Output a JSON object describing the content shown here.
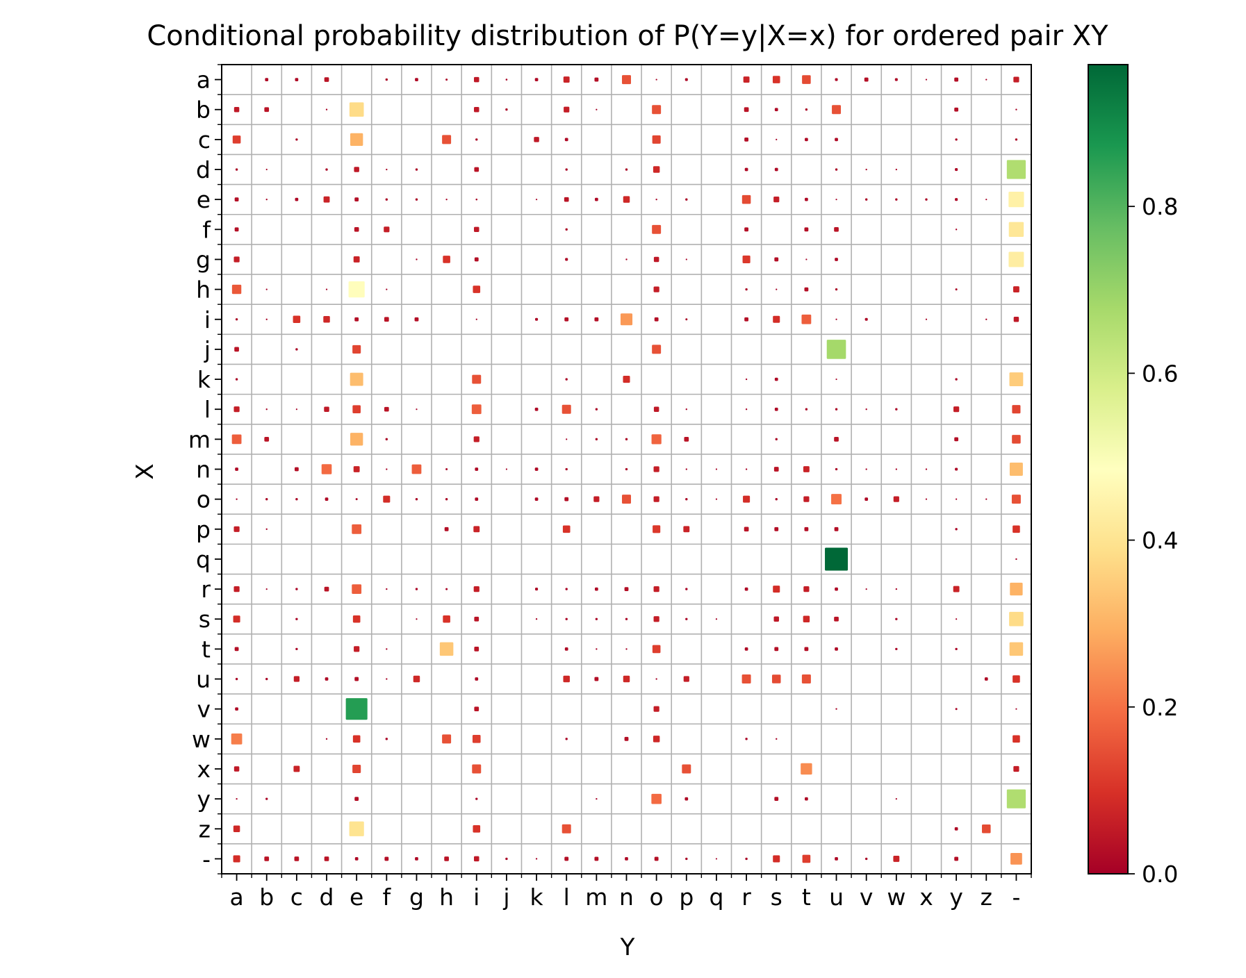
{
  "chart_data": {
    "type": "heatmap",
    "title": "Conditional probability distribution of P(Y=y|X=x) for ordered pair XY",
    "xlabel": "Y",
    "ylabel": "X",
    "x_categories": [
      "a",
      "b",
      "c",
      "d",
      "e",
      "f",
      "g",
      "h",
      "i",
      "j",
      "k",
      "l",
      "m",
      "n",
      "o",
      "p",
      "q",
      "r",
      "s",
      "t",
      "u",
      "v",
      "w",
      "x",
      "y",
      "z",
      "-"
    ],
    "y_categories": [
      "a",
      "b",
      "c",
      "d",
      "e",
      "f",
      "g",
      "h",
      "i",
      "j",
      "k",
      "l",
      "m",
      "n",
      "o",
      "p",
      "q",
      "r",
      "s",
      "t",
      "u",
      "v",
      "w",
      "x",
      "y",
      "z",
      "-"
    ],
    "grid": true,
    "marker": "square sized and colored by probability",
    "colormap": "RdYlGn",
    "colormap_stops": [
      "#a50026",
      "#d73027",
      "#f46d43",
      "#fdae61",
      "#fee08b",
      "#ffffbf",
      "#d9ef8b",
      "#a6d96a",
      "#66bd63",
      "#1a9850",
      "#006837"
    ],
    "vmin": 0.0,
    "vmax": 0.97,
    "colorbar": {
      "ticks": [
        0.0,
        0.2,
        0.4,
        0.6,
        0.8
      ],
      "tick_labels": [
        "0.0",
        "0.2",
        "0.4",
        "0.6",
        "0.8"
      ],
      "position": "right"
    },
    "values": {
      "a": {
        "b": 0.02,
        "c": 0.02,
        "d": 0.04,
        "f": 0.01,
        "g": 0.02,
        "h": 0.008,
        "i": 0.05,
        "j": 0.006,
        "k": 0.02,
        "l": 0.07,
        "m": 0.03,
        "n": 0.15,
        "o": 0.003,
        "p": 0.015,
        "r": 0.07,
        "s": 0.1,
        "t": 0.14,
        "u": 0.015,
        "v": 0.03,
        "w": 0.015,
        "x": 0.002,
        "y": 0.03,
        "z": 0.002,
        "-": 0.06
      },
      "b": {
        "a": 0.05,
        "b": 0.04,
        "d": 0.005,
        "e": 0.38,
        "i": 0.05,
        "j": 0.01,
        "l": 0.06,
        "m": 0.002,
        "o": 0.15,
        "r": 0.04,
        "s": 0.02,
        "t": 0.01,
        "u": 0.15,
        "y": 0.03,
        "-": 0.005
      },
      "c": {
        "a": 0.12,
        "c": 0.01,
        "e": 0.3,
        "h": 0.15,
        "i": 0.01,
        "k": 0.05,
        "l": 0.02,
        "o": 0.13,
        "r": 0.03,
        "s": 0.003,
        "t": 0.02,
        "u": 0.02,
        "y": 0.01,
        "-": 0.01
      },
      "d": {
        "a": 0.01,
        "b": 0.001,
        "d": 0.01,
        "e": 0.05,
        "f": 0.005,
        "g": 0.01,
        "i": 0.04,
        "l": 0.01,
        "n": 0.01,
        "o": 0.08,
        "r": 0.02,
        "s": 0.02,
        "u": 0.01,
        "v": 0.005,
        "w": 0.005,
        "y": 0.015,
        "-": 0.66
      },
      "e": {
        "a": 0.03,
        "b": 0.005,
        "c": 0.02,
        "d": 0.07,
        "e": 0.03,
        "f": 0.01,
        "g": 0.01,
        "h": 0.005,
        "i": 0.006,
        "k": 0.004,
        "l": 0.04,
        "m": 0.02,
        "n": 0.08,
        "o": 0.005,
        "p": 0.01,
        "r": 0.14,
        "s": 0.06,
        "t": 0.02,
        "u": 0.001,
        "v": 0.01,
        "w": 0.01,
        "x": 0.01,
        "y": 0.015,
        "z": 0.003,
        "-": 0.44
      },
      "f": {
        "a": 0.03,
        "e": 0.04,
        "f": 0.06,
        "i": 0.05,
        "l": 0.01,
        "o": 0.15,
        "r": 0.03,
        "t": 0.03,
        "u": 0.04,
        "y": 0.005,
        "-": 0.41
      },
      "g": {
        "a": 0.06,
        "e": 0.07,
        "g": 0.005,
        "h": 0.1,
        "i": 0.03,
        "l": 0.015,
        "n": 0.005,
        "o": 0.05,
        "p": 0.001,
        "r": 0.11,
        "s": 0.03,
        "t": 0.001,
        "u": 0.02,
        "-": 0.43
      },
      "h": {
        "a": 0.16,
        "b": 0.001,
        "d": 0.001,
        "e": 0.48,
        "f": 0.001,
        "i": 0.1,
        "o": 0.06,
        "r": 0.01,
        "s": 0.002,
        "t": 0.03,
        "u": 0.01,
        "y": 0.008,
        "-": 0.07
      },
      "i": {
        "a": 0.01,
        "b": 0.005,
        "c": 0.1,
        "d": 0.08,
        "e": 0.03,
        "f": 0.04,
        "g": 0.03,
        "i": 0.002,
        "k": 0.015,
        "l": 0.03,
        "m": 0.03,
        "n": 0.26,
        "o": 0.03,
        "p": 0.008,
        "r": 0.03,
        "s": 0.09,
        "t": 0.17,
        "u": 0.001,
        "v": 0.015,
        "x": 0.003,
        "z": 0.005,
        "-": 0.05
      },
      "j": {
        "a": 0.04,
        "c": 0.01,
        "e": 0.13,
        "o": 0.15,
        "u": 0.68
      },
      "k": {
        "a": 0.01,
        "e": 0.32,
        "i": 0.15,
        "l": 0.01,
        "n": 0.09,
        "r": 0.005,
        "s": 0.02,
        "u": 0.004,
        "y": 0.01,
        "-": 0.35
      },
      "l": {
        "a": 0.06,
        "b": 0.005,
        "c": 0.001,
        "d": 0.05,
        "e": 0.12,
        "f": 0.04,
        "g": 0.001,
        "i": 0.17,
        "k": 0.02,
        "l": 0.15,
        "m": 0.01,
        "o": 0.05,
        "p": 0.005,
        "r": 0.005,
        "s": 0.02,
        "t": 0.01,
        "u": 0.01,
        "v": 0.005,
        "w": 0.01,
        "y": 0.06,
        "-": 0.13
      },
      "m": {
        "a": 0.17,
        "b": 0.04,
        "e": 0.3,
        "f": 0.01,
        "i": 0.06,
        "l": 0.001,
        "m": 0.01,
        "n": 0.01,
        "o": 0.18,
        "p": 0.04,
        "s": 0.01,
        "u": 0.04,
        "y": 0.03,
        "-": 0.14
      },
      "n": {
        "a": 0.02,
        "c": 0.03,
        "d": 0.19,
        "e": 0.07,
        "f": 0.005,
        "g": 0.17,
        "h": 0.008,
        "i": 0.02,
        "j": 0.001,
        "k": 0.02,
        "l": 0.01,
        "n": 0.01,
        "o": 0.06,
        "p": 0.005,
        "q": 0.004,
        "r": 0.005,
        "s": 0.04,
        "t": 0.07,
        "u": 0.01,
        "v": 0.005,
        "w": 0.005,
        "x": 0.005,
        "y": 0.015,
        "-": 0.32
      },
      "o": {
        "a": 0.005,
        "b": 0.01,
        "c": 0.01,
        "d": 0.02,
        "e": 0.008,
        "f": 0.09,
        "g": 0.01,
        "h": 0.01,
        "i": 0.02,
        "k": 0.02,
        "l": 0.03,
        "m": 0.06,
        "n": 0.15,
        "o": 0.06,
        "p": 0.01,
        "q": 0.004,
        "r": 0.09,
        "s": 0.01,
        "t": 0.06,
        "u": 0.2,
        "v": 0.02,
        "w": 0.06,
        "x": 0.003,
        "y": 0.003,
        "z": 0.001,
        "-": 0.15
      },
      "p": {
        "a": 0.06,
        "b": 0.005,
        "e": 0.17,
        "h": 0.03,
        "i": 0.07,
        "l": 0.1,
        "o": 0.11,
        "p": 0.07,
        "r": 0.04,
        "s": 0.03,
        "t": 0.03,
        "u": 0.03,
        "y": 0.01,
        "-": 0.1
      },
      "q": {
        "u": 0.97,
        "-": 0.005
      },
      "r": {
        "a": 0.06,
        "b": 0.003,
        "c": 0.01,
        "d": 0.04,
        "e": 0.17,
        "f": 0.005,
        "g": 0.01,
        "h": 0.008,
        "i": 0.06,
        "k": 0.015,
        "l": 0.01,
        "m": 0.02,
        "n": 0.03,
        "o": 0.06,
        "p": 0.01,
        "r": 0.02,
        "s": 0.09,
        "t": 0.06,
        "u": 0.02,
        "v": 0.003,
        "w": 0.005,
        "y": 0.07,
        "-": 0.3
      },
      "s": {
        "a": 0.09,
        "c": 0.01,
        "e": 0.1,
        "g": 0.001,
        "h": 0.1,
        "i": 0.04,
        "k": 0.005,
        "l": 0.01,
        "m": 0.01,
        "n": 0.01,
        "o": 0.06,
        "p": 0.01,
        "q": 0.003,
        "s": 0.05,
        "t": 0.08,
        "u": 0.04,
        "w": 0.01,
        "y": 0.003,
        "-": 0.38
      },
      "t": {
        "a": 0.03,
        "c": 0.01,
        "e": 0.06,
        "f": 0.005,
        "h": 0.34,
        "i": 0.04,
        "l": 0.02,
        "m": 0.005,
        "n": 0.005,
        "o": 0.12,
        "r": 0.02,
        "s": 0.03,
        "t": 0.03,
        "u": 0.02,
        "w": 0.01,
        "y": 0.01,
        "-": 0.34
      },
      "u": {
        "a": 0.01,
        "b": 0.01,
        "c": 0.06,
        "d": 0.02,
        "e": 0.03,
        "f": 0.005,
        "g": 0.08,
        "i": 0.02,
        "l": 0.08,
        "m": 0.03,
        "n": 0.08,
        "o": 0.005,
        "p": 0.06,
        "r": 0.15,
        "s": 0.14,
        "t": 0.15,
        "z": 0.02,
        "-": 0.1
      },
      "v": {
        "a": 0.02,
        "e": 0.86,
        "i": 0.04,
        "o": 0.06,
        "u": 0.005,
        "y": 0.008,
        "-": 0.003
      },
      "w": {
        "a": 0.22,
        "d": 0.005,
        "e": 0.1,
        "f": 0.01,
        "h": 0.15,
        "i": 0.12,
        "l": 0.01,
        "n": 0.03,
        "o": 0.08,
        "r": 0.01,
        "s": 0.005,
        "-": 0.1
      },
      "x": {
        "a": 0.05,
        "c": 0.07,
        "e": 0.13,
        "i": 0.15,
        "p": 0.15,
        "t": 0.24,
        "-": 0.06
      },
      "y": {
        "a": 0.005,
        "b": 0.01,
        "e": 0.03,
        "i": 0.01,
        "m": 0.005,
        "o": 0.19,
        "p": 0.02,
        "s": 0.03,
        "t": 0.02,
        "w": 0.004,
        "-": 0.66
      },
      "z": {
        "a": 0.08,
        "e": 0.4,
        "i": 0.1,
        "l": 0.15,
        "y": 0.02,
        "z": 0.14
      },
      "-": {
        "a": 0.09,
        "b": 0.04,
        "c": 0.04,
        "d": 0.04,
        "e": 0.02,
        "f": 0.03,
        "g": 0.02,
        "h": 0.04,
        "i": 0.05,
        "j": 0.01,
        "k": 0.005,
        "l": 0.03,
        "m": 0.03,
        "n": 0.02,
        "o": 0.03,
        "p": 0.01,
        "q": 0.003,
        "r": 0.01,
        "s": 0.09,
        "t": 0.12,
        "u": 0.02,
        "v": 0.01,
        "w": 0.07,
        "y": 0.03,
        "-": 0.25
      }
    }
  }
}
